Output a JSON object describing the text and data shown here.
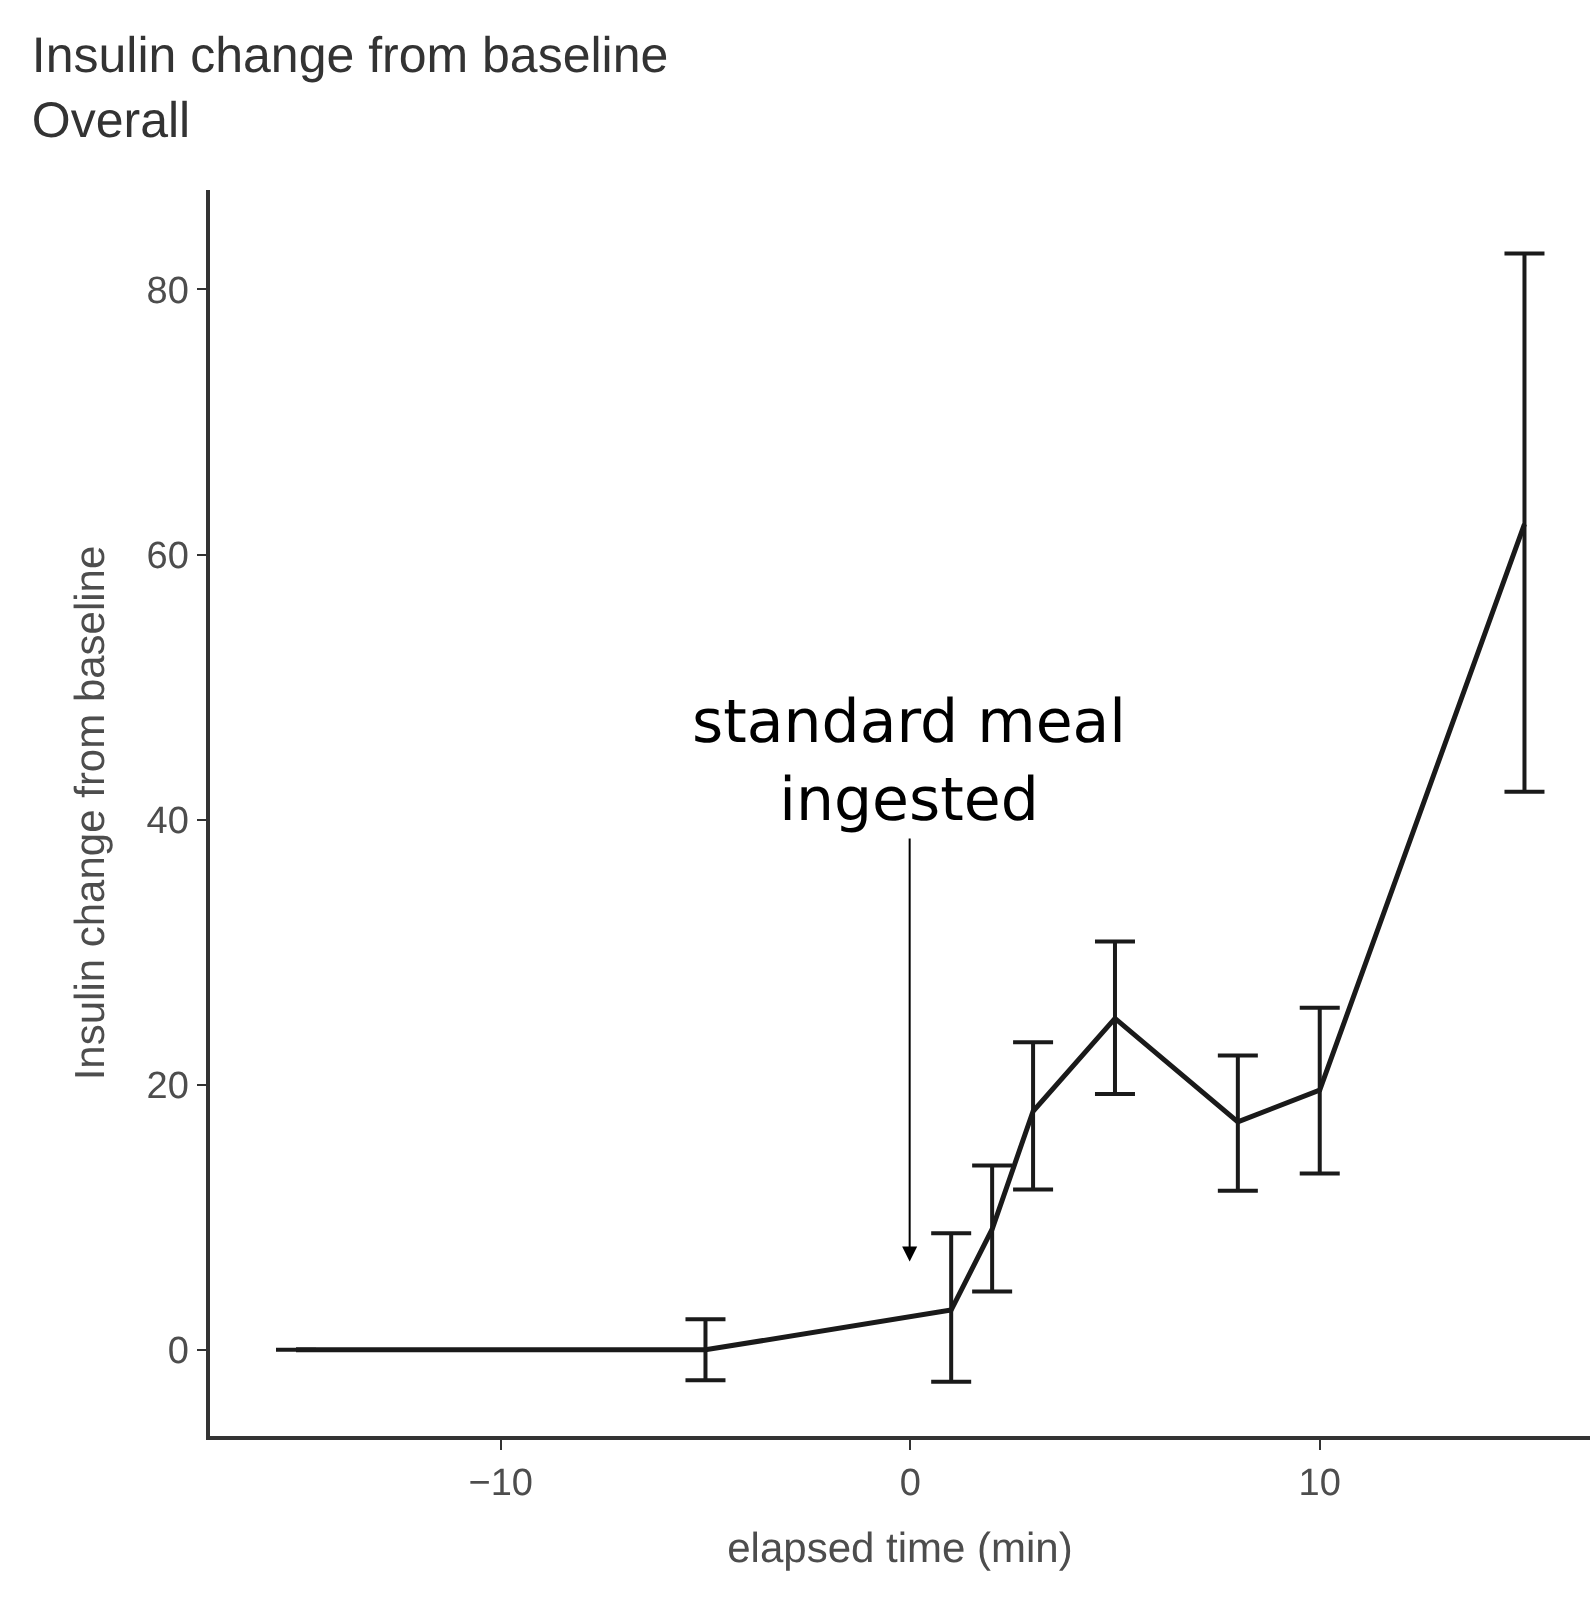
{
  "chart_data": {
    "type": "line",
    "title": "Insulin change from baseline",
    "subtitle": "Overall",
    "xlabel": "elapsed time (min)",
    "ylabel": "Insulin change from baseline",
    "x": [
      -15,
      -5,
      1,
      2,
      3,
      5,
      8,
      10,
      15
    ],
    "series": [
      {
        "color": "#1a1a1a",
        "values": [
          0,
          0,
          3,
          9.1,
          18,
          25,
          17.2,
          19.6,
          62.3
        ],
        "errors": [
          null,
          2.3,
          [
            -2.4,
            8.8
          ],
          [
            4.4,
            13.9
          ],
          [
            12.1,
            23.2
          ],
          [
            19.3,
            30.8
          ],
          [
            12,
            22.2
          ],
          [
            13.3,
            25.8
          ],
          [
            42.1,
            82.7
          ]
        ]
      }
    ],
    "xlim": [
      -17.1,
      16.6
    ],
    "ylim": [
      -6.5,
      87.5
    ],
    "xticks": [
      -10,
      0,
      10
    ],
    "yticks": [
      0,
      20,
      40,
      60,
      80
    ],
    "marker": "none",
    "line_style": "solid",
    "annotations": [
      "standard meal\ningested"
    ]
  }
}
